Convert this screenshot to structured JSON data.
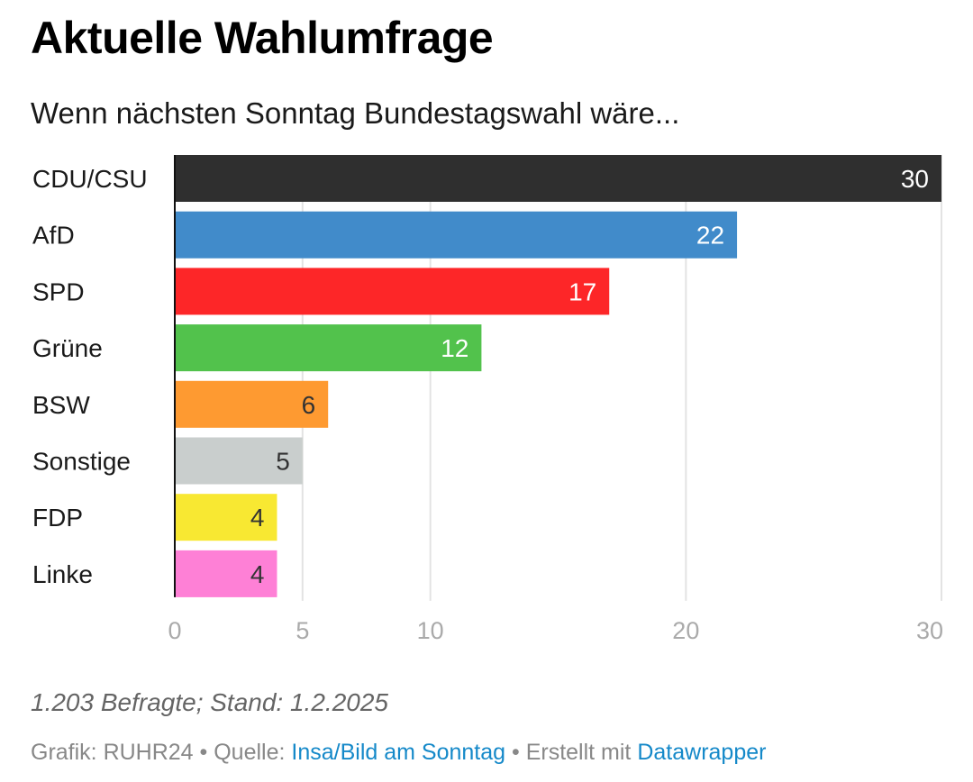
{
  "header": {
    "title": "Aktuelle Wahlumfrage",
    "subtitle": "Wenn nächsten Sonntag Bundestagswahl wäre..."
  },
  "chart_data": {
    "type": "bar",
    "orientation": "horizontal",
    "title": "Aktuelle Wahlumfrage",
    "subtitle": "Wenn nächsten Sonntag Bundestagswahl wäre...",
    "xlabel": "",
    "ylabel": "",
    "categories": [
      "CDU/CSU",
      "AfD",
      "SPD",
      "Grüne",
      "BSW",
      "Sonstige",
      "FDP",
      "Linke"
    ],
    "values": [
      30,
      22,
      17,
      12,
      6,
      5,
      4,
      4
    ],
    "value_labels": [
      "30",
      "22",
      "17",
      "12",
      "6",
      "5",
      "4",
      "4"
    ],
    "colors": [
      "#2f2f2f",
      "#418bca",
      "#fd2628",
      "#52c24c",
      "#fe9a31",
      "#c9cecd",
      "#f8e832",
      "#fe80d6"
    ],
    "label_colors": [
      "#ffffff",
      "#ffffff",
      "#ffffff",
      "#ffffff",
      "#333333",
      "#333333",
      "#333333",
      "#333333"
    ],
    "xlim": [
      0,
      30
    ],
    "x_ticks": [
      0,
      5,
      10,
      20,
      30
    ],
    "x_tick_labels": [
      "0",
      "5",
      "10",
      "20",
      "30"
    ],
    "grid": true,
    "legend": "none"
  },
  "notes": {
    "text": "1.203 Befragte; Stand: 1.2.2025"
  },
  "footer": {
    "grafik_prefix": "Grafik: RUHR24 • Quelle: ",
    "source_link": "Insa/Bild am Sonntag",
    "separator": " • Erstellt mit ",
    "tool_link": "Datawrapper"
  }
}
